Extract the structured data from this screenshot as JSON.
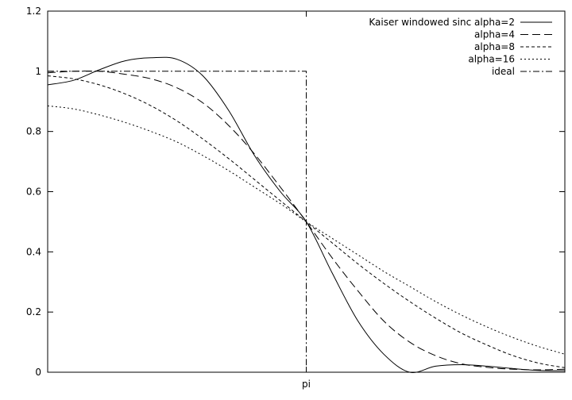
{
  "chart_data": {
    "type": "line",
    "title": "",
    "xlabel": "",
    "ylabel": "",
    "x_range": [
      0,
      6.2832
    ],
    "ylim": [
      0,
      1.2
    ],
    "x_ticks": [
      {
        "value": 3.1416,
        "label": "pi"
      }
    ],
    "y_ticks": [
      {
        "value": 0,
        "label": "0"
      },
      {
        "value": 0.2,
        "label": "0.2"
      },
      {
        "value": 0.4,
        "label": "0.4"
      },
      {
        "value": 0.6,
        "label": "0.6"
      },
      {
        "value": 0.8,
        "label": "0.8"
      },
      {
        "value": 1.0,
        "label": "1"
      },
      {
        "value": 1.2,
        "label": "1.2"
      }
    ],
    "grid": false,
    "legend_position": "top-right",
    "series": [
      {
        "name": "Kaiser windowed sinc alpha=2",
        "dash": "",
        "x": [
          0,
          0.314,
          0.628,
          0.942,
          1.257,
          1.571,
          1.885,
          2.199,
          2.513,
          2.827,
          3.142,
          3.456,
          3.77,
          4.084,
          4.398,
          4.712,
          5.027,
          5.341,
          5.655,
          5.969,
          6.283
        ],
        "y": [
          0.955,
          0.97,
          1.005,
          1.035,
          1.045,
          1.04,
          0.985,
          0.87,
          0.72,
          0.6,
          0.5,
          0.33,
          0.17,
          0.06,
          0.0,
          0.02,
          0.025,
          0.02,
          0.012,
          0.006,
          0.005
        ]
      },
      {
        "name": "alpha=4",
        "dash": "10,5",
        "x": [
          0,
          0.314,
          0.628,
          0.942,
          1.257,
          1.571,
          1.885,
          2.199,
          2.513,
          2.827,
          3.142,
          3.456,
          3.77,
          4.084,
          4.398,
          4.712,
          5.027,
          5.341,
          5.655,
          5.969,
          6.283
        ],
        "y": [
          0.995,
          1.0,
          1.0,
          0.99,
          0.975,
          0.945,
          0.895,
          0.82,
          0.725,
          0.615,
          0.5,
          0.38,
          0.27,
          0.17,
          0.1,
          0.055,
          0.028,
          0.016,
          0.01,
          0.008,
          0.01
        ]
      },
      {
        "name": "alpha=8",
        "dash": "4,3",
        "x": [
          0,
          0.314,
          0.628,
          0.942,
          1.257,
          1.571,
          1.885,
          2.199,
          2.513,
          2.827,
          3.142,
          3.456,
          3.77,
          4.084,
          4.398,
          4.712,
          5.027,
          5.341,
          5.655,
          5.969,
          6.283
        ],
        "y": [
          0.985,
          0.975,
          0.955,
          0.925,
          0.885,
          0.835,
          0.775,
          0.71,
          0.64,
          0.57,
          0.5,
          0.43,
          0.36,
          0.295,
          0.235,
          0.18,
          0.13,
          0.09,
          0.055,
          0.03,
          0.015
        ]
      },
      {
        "name": "alpha=16",
        "dash": "2,3",
        "x": [
          0,
          0.314,
          0.628,
          0.942,
          1.257,
          1.571,
          1.885,
          2.199,
          2.513,
          2.827,
          3.142,
          3.456,
          3.77,
          4.084,
          4.398,
          4.712,
          5.027,
          5.341,
          5.655,
          5.969,
          6.283
        ],
        "y": [
          0.885,
          0.875,
          0.855,
          0.83,
          0.8,
          0.765,
          0.72,
          0.67,
          0.615,
          0.56,
          0.5,
          0.445,
          0.39,
          0.335,
          0.285,
          0.235,
          0.19,
          0.15,
          0.115,
          0.085,
          0.06
        ]
      },
      {
        "name": "ideal",
        "dash": "8,3,2,3",
        "x": [
          0,
          3.1416,
          3.1416
        ],
        "y": [
          1.0,
          1.0,
          0.0
        ]
      }
    ]
  }
}
